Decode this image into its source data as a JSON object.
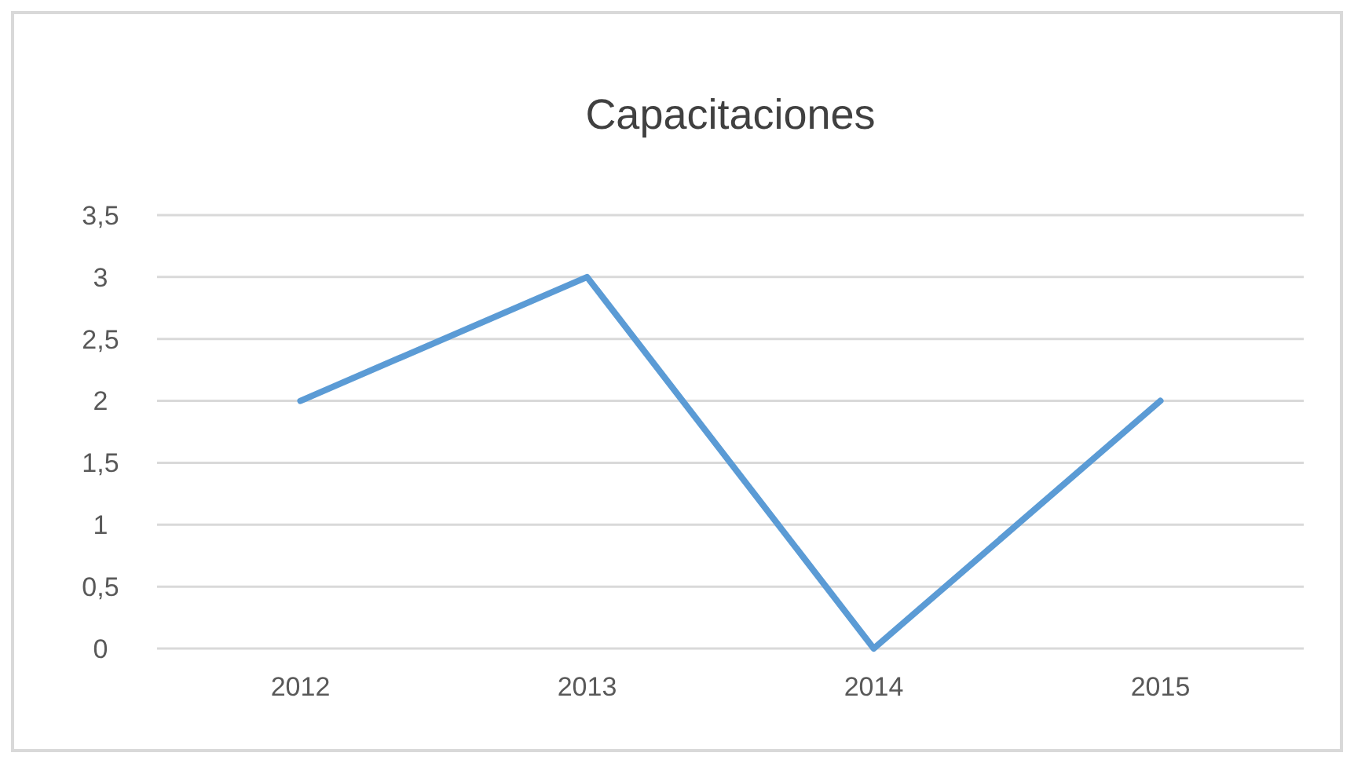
{
  "chart_data": {
    "type": "line",
    "title": "Capacitaciones",
    "categories": [
      "2012",
      "2013",
      "2014",
      "2015"
    ],
    "series": [
      {
        "color": "#5b9bd5",
        "values": [
          2,
          3,
          0,
          2
        ]
      }
    ],
    "ylim": [
      0,
      3.5
    ],
    "yticks": [
      0,
      {
        "value": 0.5,
        "label": "0,5"
      },
      1,
      {
        "value": 1.5,
        "label": "1,5"
      },
      2,
      {
        "value": 2.5,
        "label": "2,5"
      },
      3,
      {
        "value": 3.5,
        "label": "3,5"
      }
    ],
    "grid": "y",
    "marker": "none",
    "line_style": "solid"
  }
}
